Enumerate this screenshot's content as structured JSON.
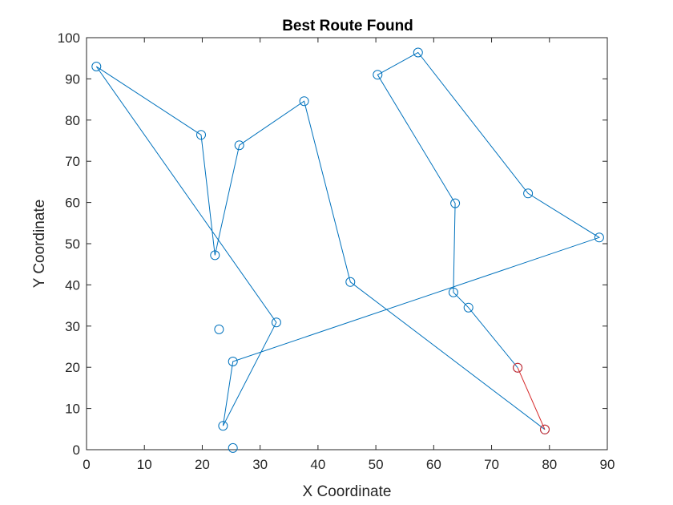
{
  "chart_data": {
    "type": "line",
    "title": "Best Route Found",
    "xlabel": "X Coordinate",
    "ylabel": "Y Coordinate",
    "xlim": [
      0,
      90
    ],
    "ylim": [
      0,
      100
    ],
    "xticks": [
      "0",
      "10",
      "20",
      "30",
      "40",
      "50",
      "60",
      "70",
      "80",
      "90"
    ],
    "yticks": [
      "0",
      "10",
      "20",
      "30",
      "40",
      "50",
      "60",
      "70",
      "80",
      "90",
      "100"
    ],
    "grid": false,
    "legend": false,
    "route_color": "#0072BD",
    "highlight_color": "#D62728",
    "series": [
      {
        "values": [
          [
            79.2,
            4.9
          ],
          [
            45.6,
            40.7
          ],
          [
            37.6,
            84.6
          ],
          [
            26.4,
            73.9
          ],
          [
            22.2,
            47.2
          ],
          [
            19.8,
            76.4
          ],
          [
            1.7,
            93.0
          ],
          [
            32.8,
            30.9
          ],
          [
            23.6,
            5.8
          ],
          [
            25.3,
            21.4
          ],
          [
            88.6,
            51.5
          ],
          [
            76.3,
            62.2
          ],
          [
            57.3,
            96.4
          ],
          [
            50.3,
            91.0
          ],
          [
            63.7,
            59.8
          ],
          [
            63.4,
            38.2
          ],
          [
            66.0,
            34.5
          ],
          [
            74.5,
            19.9
          ]
        ]
      },
      {
        "values": [
          [
            74.5,
            19.9
          ],
          [
            79.2,
            4.9
          ]
        ]
      }
    ],
    "extra_points": [
      [
        22.9,
        29.2
      ],
      [
        25.3,
        0.4
      ]
    ]
  }
}
